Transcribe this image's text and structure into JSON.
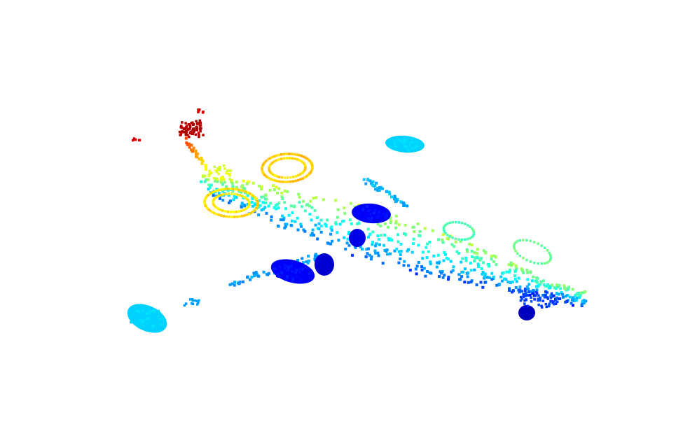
{
  "scene": {
    "subject": "airplane",
    "render_style": "3d-point-cloud",
    "background": "#ffffff",
    "colormap": "jet",
    "colormap_stops": [
      "#00008f",
      "#0000ff",
      "#0080ff",
      "#00ffff",
      "#80ff80",
      "#ffff00",
      "#ff8000",
      "#ff0000",
      "#800000"
    ],
    "parts": [
      {
        "name": "tail-fin",
        "dominant_color": "#c81400"
      },
      {
        "name": "fuselage",
        "dominant_color": "#40e0d0"
      },
      {
        "name": "rear-engines",
        "dominant_color": "#e6f020"
      },
      {
        "name": "wing-tip-fuel-tanks",
        "dominant_color": "#10c8f0"
      },
      {
        "name": "landing-gear",
        "dominant_color": "#0a14c8"
      },
      {
        "name": "nose",
        "dominant_color": "#1e64ff"
      }
    ]
  }
}
